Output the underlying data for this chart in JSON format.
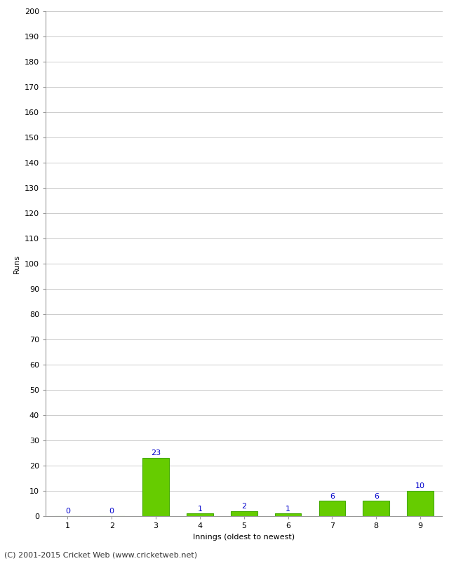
{
  "xlabel": "Innings (oldest to newest)",
  "ylabel": "Runs",
  "categories": [
    "1",
    "2",
    "3",
    "4",
    "5",
    "6",
    "7",
    "8",
    "9"
  ],
  "values": [
    0,
    0,
    23,
    1,
    2,
    1,
    6,
    6,
    10
  ],
  "bar_color": "#66cc00",
  "bar_edge_color": "#44aa00",
  "label_color": "#0000cc",
  "ylim": [
    0,
    200
  ],
  "yticks": [
    0,
    10,
    20,
    30,
    40,
    50,
    60,
    70,
    80,
    90,
    100,
    110,
    120,
    130,
    140,
    150,
    160,
    170,
    180,
    190,
    200
  ],
  "background_color": "#ffffff",
  "grid_color": "#cccccc",
  "footer": "(C) 2001-2015 Cricket Web (www.cricketweb.net)",
  "axis_label_fontsize": 8,
  "tick_fontsize": 8,
  "bar_label_fontsize": 8,
  "footer_fontsize": 8
}
